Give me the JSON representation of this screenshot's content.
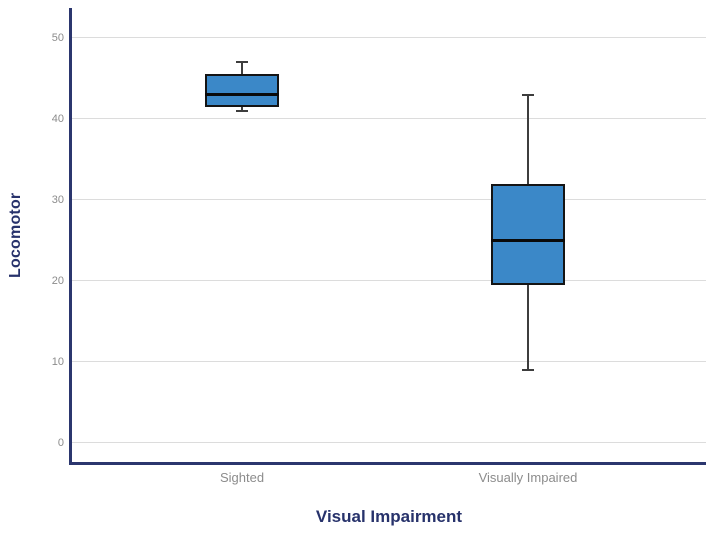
{
  "chart_data": {
    "type": "boxplot",
    "title": "",
    "xlabel": "Visual Impairment",
    "ylabel": "Locomotor",
    "categories": [
      "Sighted",
      "Visually Impaired"
    ],
    "series": [
      {
        "category": "Sighted",
        "whisker_low": 41,
        "q1": 41.5,
        "median": 43,
        "q3": 45.5,
        "whisker_high": 47
      },
      {
        "category": "Visually Impaired",
        "whisker_low": 9,
        "q1": 19.5,
        "median": 25,
        "q3": 32,
        "whisker_high": 43
      }
    ],
    "yticks": [
      0,
      10,
      20,
      30,
      40,
      50
    ],
    "ylim": [
      -2.35,
      53.7
    ],
    "grid": "horizontal-gridlines",
    "legend": "none",
    "colors": {
      "box_fill": "#3B88C8",
      "box_border": "#141414",
      "median": "#0A0A0A",
      "whisker": "#3D3D3D",
      "axis": "#2B366E",
      "axis_title": "#27326B",
      "tick_label": "#8C8C8C",
      "gridline": "#DCDCDC",
      "background": "#FFFFFF"
    }
  }
}
